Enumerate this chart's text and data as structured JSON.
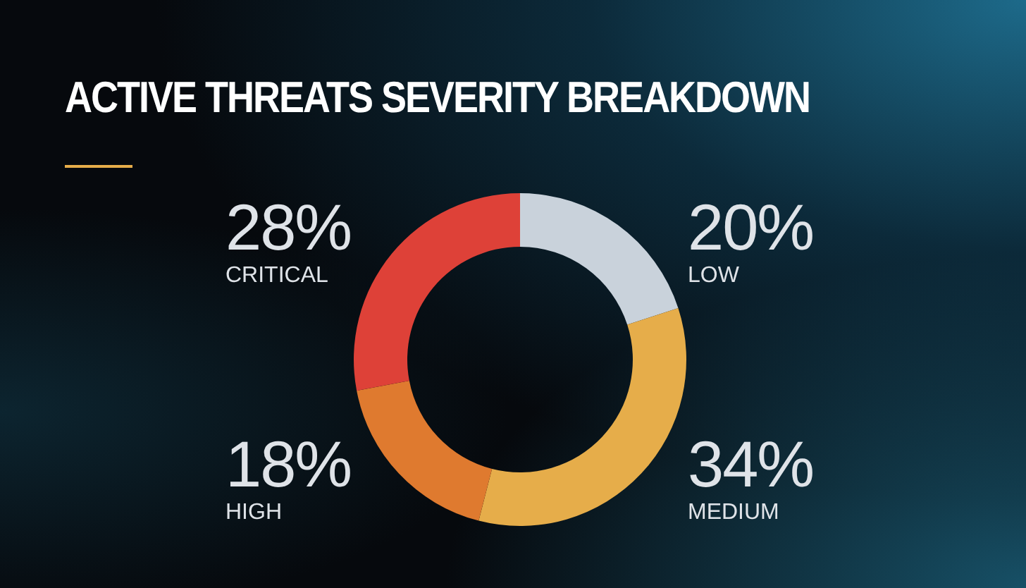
{
  "chart_data": {
    "type": "donut",
    "title": "ACTIVE THREATS SEVERITY BREAKDOWN",
    "categories": [
      "LOW",
      "MEDIUM",
      "HIGH",
      "CRITICAL"
    ],
    "values": [
      20,
      34,
      18,
      28
    ],
    "value_labels": [
      "20%",
      "34%",
      "18%",
      "28%"
    ],
    "colors": [
      "#c9d2db",
      "#e6ad4a",
      "#df7a2f",
      "#de4138"
    ]
  }
}
